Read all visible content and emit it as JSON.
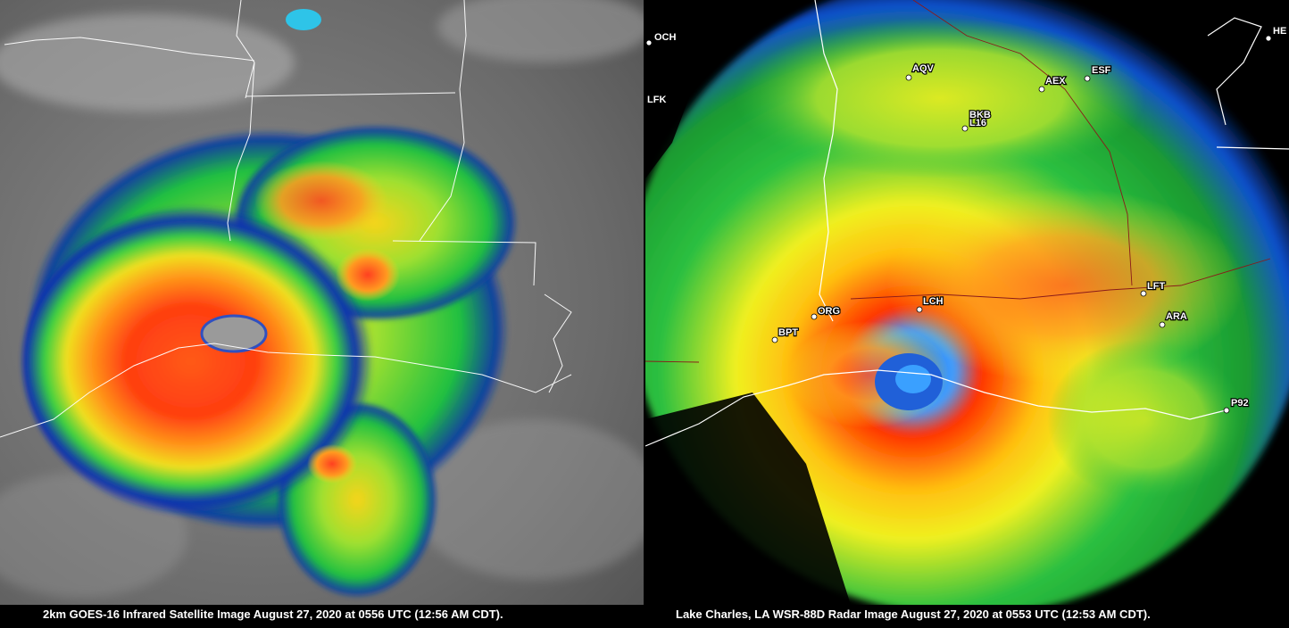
{
  "satellite_panel": {
    "caption": "2km GOES-16 Infrared Satellite Image August 27, 2020 at 0556 UTC (12:56 AM CDT)."
  },
  "radar_panel": {
    "caption": "Lake Charles, LA WSR-88D Radar Image August 27, 2020 at 0553 UTC (12:53 AM CDT).",
    "stations": [
      {
        "id": "och",
        "label": "OCH"
      },
      {
        "id": "lfk",
        "label": "LFK"
      },
      {
        "id": "aqv",
        "label": "AQV"
      },
      {
        "id": "aex",
        "label": "AEX"
      },
      {
        "id": "esf",
        "label": "ESF"
      },
      {
        "id": "bkb",
        "label": "BKB"
      },
      {
        "id": "l16",
        "label": "L16"
      },
      {
        "id": "lch",
        "label": "LCH"
      },
      {
        "id": "org",
        "label": "ORG"
      },
      {
        "id": "bpt",
        "label": "BPT"
      },
      {
        "id": "lft",
        "label": "LFT"
      },
      {
        "id": "ara",
        "label": "ARA"
      },
      {
        "id": "p92",
        "label": "P92"
      },
      {
        "id": "he",
        "label": "HE"
      }
    ]
  }
}
